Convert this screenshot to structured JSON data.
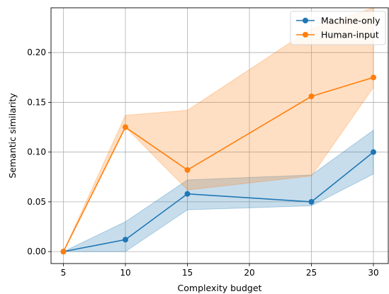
{
  "chart_data": {
    "type": "line",
    "xlabel": "Complexity budget",
    "ylabel": "Semantic similarity",
    "x": [
      5,
      10,
      15,
      25,
      30
    ],
    "xlim": [
      4,
      31.2
    ],
    "ylim": [
      -0.012,
      0.245
    ],
    "xticks": [
      5,
      10,
      15,
      20,
      25,
      30
    ],
    "yticks": [
      0.0,
      0.05,
      0.1,
      0.15,
      0.2
    ],
    "ytick_labels": [
      "0.00",
      "0.05",
      "0.10",
      "0.15",
      "0.20"
    ],
    "grid": true,
    "legend_position": "top-right",
    "series": [
      {
        "name": "Machine-only",
        "color": "#1f77b4",
        "fill_color": "#1f77b4",
        "values": [
          0.0,
          0.012,
          0.058,
          0.05,
          0.1
        ],
        "lower": [
          0.0,
          0.0,
          0.042,
          0.046,
          0.078
        ],
        "upper": [
          0.0,
          0.03,
          0.072,
          0.077,
          0.122
        ]
      },
      {
        "name": "Human-input",
        "color": "#ff7f0e",
        "fill_color": "#ff7f0e",
        "values": [
          0.0,
          0.125,
          0.082,
          0.156,
          0.175
        ],
        "lower": [
          0.0,
          0.125,
          0.062,
          0.076,
          0.165
        ],
        "upper": [
          0.0,
          0.137,
          0.142,
          0.224,
          0.245
        ]
      }
    ]
  }
}
